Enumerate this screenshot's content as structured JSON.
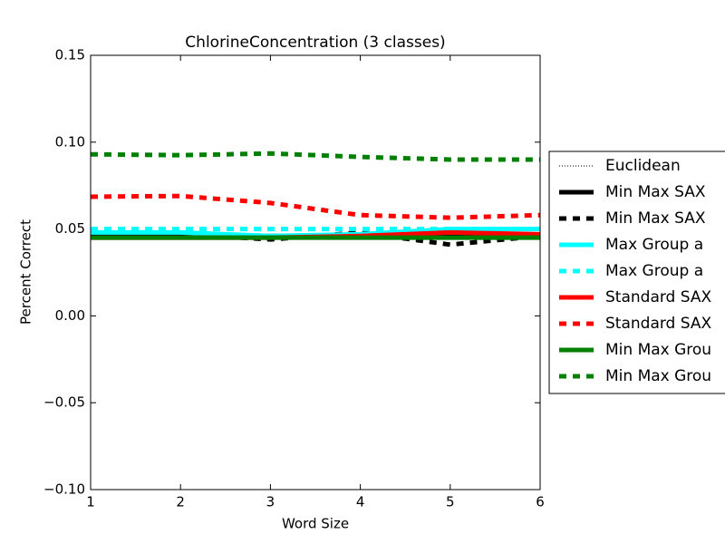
{
  "chart_data": {
    "type": "line",
    "title": "ChlorineConcentration (3 classes)",
    "xlabel": "Word Size",
    "ylabel": "Percent Correct",
    "x": [
      1,
      2,
      3,
      4,
      5,
      6
    ],
    "xlim": [
      1,
      6
    ],
    "xticks": [
      1,
      2,
      3,
      4,
      5,
      6
    ],
    "ylim": [
      -0.1,
      0.15
    ],
    "yticks": [
      {
        "value": -0.1,
        "label": "−0.10"
      },
      {
        "value": -0.05,
        "label": "−0.05"
      },
      {
        "value": 0,
        "label": "0.00"
      },
      {
        "value": 0.05,
        "label": "0.05"
      },
      {
        "value": 0.1,
        "label": "0.10"
      },
      {
        "value": 0.15,
        "label": "0.15"
      }
    ],
    "legend": "right",
    "series": [
      {
        "name": "Euclidean",
        "color": "#000000",
        "style": "dotted",
        "width": 1,
        "values": [
          0.046,
          0.046,
          0.046,
          0.046,
          0.046,
          0.046
        ]
      },
      {
        "name": "Min Max SAX",
        "color": "#000000",
        "style": "solid",
        "width": 5,
        "values": [
          0.046,
          0.046,
          0.046,
          0.046,
          0.047,
          0.046
        ]
      },
      {
        "name": "Min Max SAX",
        "color": "#000000",
        "style": "dashed",
        "width": 5,
        "values": [
          0.046,
          0.047,
          0.044,
          0.048,
          0.041,
          0.046
        ]
      },
      {
        "name": "Max Group a",
        "color": "#00ffff",
        "style": "solid",
        "width": 5,
        "values": [
          0.048,
          0.048,
          0.046,
          0.047,
          0.05,
          0.05
        ]
      },
      {
        "name": "Max Group a",
        "color": "#00ffff",
        "style": "dashed",
        "width": 5,
        "values": [
          0.05,
          0.05,
          0.05,
          0.05,
          0.05,
          0.05
        ]
      },
      {
        "name": "Standard SAX",
        "color": "#ff0000",
        "style": "solid",
        "width": 5,
        "values": [
          0.045,
          0.045,
          0.045,
          0.046,
          0.048,
          0.047
        ]
      },
      {
        "name": "Standard SAX",
        "color": "#ff0000",
        "style": "dashed",
        "width": 5,
        "values": [
          0.0686,
          0.069,
          0.065,
          0.058,
          0.0565,
          0.058
        ]
      },
      {
        "name": "Min Max Grou",
        "color": "#008000",
        "style": "solid",
        "width": 5,
        "values": [
          0.045,
          0.045,
          0.045,
          0.045,
          0.045,
          0.045
        ]
      },
      {
        "name": "Min Max Grou",
        "color": "#008000",
        "style": "dashed",
        "width": 5,
        "values": [
          0.093,
          0.0925,
          0.0935,
          0.0915,
          0.09,
          0.09
        ]
      }
    ]
  }
}
